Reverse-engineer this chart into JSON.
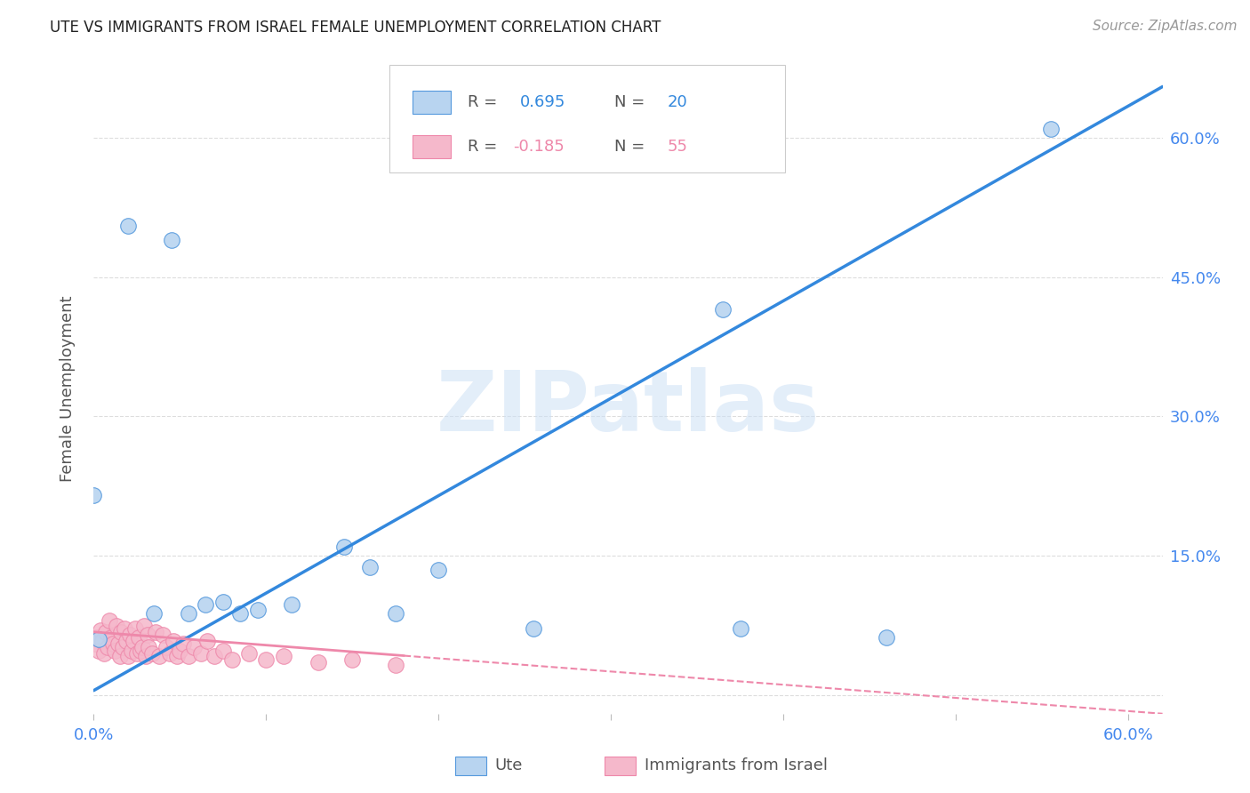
{
  "title": "UTE VS IMMIGRANTS FROM ISRAEL FEMALE UNEMPLOYMENT CORRELATION CHART",
  "source": "Source: ZipAtlas.com",
  "ylabel": "Female Unemployment",
  "xlim": [
    0.0,
    0.62
  ],
  "ylim": [
    -0.02,
    0.68
  ],
  "xticks": [
    0.0,
    0.1,
    0.2,
    0.3,
    0.4,
    0.5,
    0.6
  ],
  "yticks": [
    0.0,
    0.15,
    0.3,
    0.45,
    0.6
  ],
  "watermark": "ZIPatlas",
  "ute_color": "#b8d4f0",
  "israel_color": "#f5b8cb",
  "ute_edge_color": "#5599dd",
  "israel_edge_color": "#ee88aa",
  "ute_line_color": "#3388dd",
  "israel_line_color": "#ee88aa",
  "ute_scatter_x": [
    0.02,
    0.045,
    0.0,
    0.365,
    0.555,
    0.003,
    0.16,
    0.2,
    0.115,
    0.075,
    0.055,
    0.095,
    0.175,
    0.255,
    0.145,
    0.375,
    0.46,
    0.065,
    0.085,
    0.035
  ],
  "ute_scatter_y": [
    0.505,
    0.49,
    0.215,
    0.415,
    0.61,
    0.06,
    0.138,
    0.135,
    0.098,
    0.1,
    0.088,
    0.092,
    0.088,
    0.072,
    0.16,
    0.072,
    0.062,
    0.098,
    0.088,
    0.088
  ],
  "israel_scatter_x": [
    0.001,
    0.002,
    0.003,
    0.004,
    0.005,
    0.006,
    0.007,
    0.008,
    0.009,
    0.01,
    0.011,
    0.012,
    0.013,
    0.014,
    0.015,
    0.016,
    0.017,
    0.018,
    0.019,
    0.02,
    0.021,
    0.022,
    0.023,
    0.024,
    0.025,
    0.026,
    0.027,
    0.028,
    0.029,
    0.03,
    0.031,
    0.032,
    0.034,
    0.036,
    0.038,
    0.04,
    0.042,
    0.044,
    0.046,
    0.048,
    0.05,
    0.052,
    0.055,
    0.058,
    0.062,
    0.066,
    0.07,
    0.075,
    0.08,
    0.09,
    0.1,
    0.11,
    0.13,
    0.15,
    0.175
  ],
  "israel_scatter_y": [
    0.055,
    0.062,
    0.048,
    0.07,
    0.058,
    0.045,
    0.068,
    0.052,
    0.08,
    0.062,
    0.055,
    0.048,
    0.075,
    0.055,
    0.042,
    0.068,
    0.052,
    0.072,
    0.058,
    0.042,
    0.065,
    0.048,
    0.058,
    0.072,
    0.045,
    0.062,
    0.048,
    0.052,
    0.075,
    0.042,
    0.065,
    0.052,
    0.045,
    0.068,
    0.042,
    0.065,
    0.052,
    0.045,
    0.058,
    0.042,
    0.048,
    0.055,
    0.042,
    0.052,
    0.045,
    0.058,
    0.042,
    0.048,
    0.038,
    0.045,
    0.038,
    0.042,
    0.035,
    0.038,
    0.032
  ],
  "ute_line_x": [
    0.0,
    0.62
  ],
  "ute_line_y": [
    0.005,
    0.655
  ],
  "israel_line_x": [
    0.0,
    0.62
  ],
  "israel_line_y": [
    0.068,
    -0.02
  ],
  "israel_line_solid_end": 0.18,
  "background_color": "#ffffff",
  "grid_color": "#dddddd",
  "title_color": "#222222",
  "right_ytick_color": "#4488ee",
  "xtick_color": "#4488ee"
}
